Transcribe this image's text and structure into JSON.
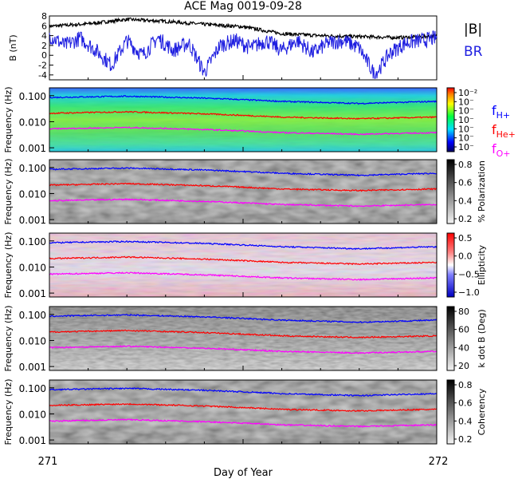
{
  "chart_data": {
    "type": "heatmap",
    "title": "ACE Mag 0019-09-28",
    "xlabel": "Day of Year",
    "x_ticks": [
      "271",
      "272"
    ],
    "xlim": [
      271,
      272
    ],
    "colors": {
      "bfield": "#000000",
      "br": "#1f1fe0",
      "h": "#0000ff",
      "he": "#ff0000",
      "o": "#ff00ff"
    },
    "top_panel": {
      "ylabel": "B (nT)",
      "ylim": [
        -5,
        8
      ],
      "yticks": [
        "8",
        "6",
        "4",
        "2",
        "0",
        "-2",
        "-4"
      ],
      "legend": [
        "|B|",
        "BR"
      ],
      "series": [
        {
          "name": "|B|",
          "x": [
            271.0,
            271.1,
            271.2,
            271.3,
            271.4,
            271.5,
            271.6,
            271.7,
            271.8,
            271.9,
            272.0
          ],
          "y": [
            5.9,
            6.4,
            7.3,
            6.9,
            6.3,
            5.8,
            4.4,
            4.0,
            3.8,
            3.6,
            3.9
          ]
        },
        {
          "name": "BR",
          "x": [
            271.0,
            271.04,
            271.08,
            271.12,
            271.16,
            271.2,
            271.24,
            271.28,
            271.32,
            271.36,
            271.4,
            271.44,
            271.48,
            271.52,
            271.56,
            271.6,
            271.64,
            271.68,
            271.72,
            271.76,
            271.8,
            271.84,
            271.88,
            271.92,
            271.96,
            272.0
          ],
          "y": [
            4.0,
            2.0,
            3.5,
            1.0,
            -2.0,
            3.0,
            0.0,
            3.5,
            1.0,
            2.5,
            -3.5,
            2.0,
            3.0,
            1.5,
            3.0,
            1.0,
            3.0,
            0.5,
            2.5,
            3.0,
            1.5,
            -4.0,
            0.5,
            2.5,
            3.0,
            3.5
          ]
        }
      ]
    },
    "freq_axis": {
      "ylabel": "Frequency (Hz)",
      "ticks": [
        "0.100",
        "0.010",
        "0.001"
      ]
    },
    "gyro_lines": [
      {
        "name": "fH+",
        "label_main": "f",
        "label_sub": "H+",
        "x": [
          271.0,
          271.2,
          271.4,
          271.6,
          271.8,
          272.0
        ],
        "y": [
          0.085,
          0.095,
          0.08,
          0.06,
          0.05,
          0.06
        ]
      },
      {
        "name": "fHe+",
        "label_main": "f",
        "label_sub": "He+",
        "x": [
          271.0,
          271.2,
          271.4,
          271.6,
          271.8,
          272.0
        ],
        "y": [
          0.021,
          0.024,
          0.02,
          0.015,
          0.013,
          0.015
        ]
      },
      {
        "name": "fO+",
        "label_main": "f",
        "label_sub": "O+",
        "x": [
          271.0,
          271.2,
          271.4,
          271.6,
          271.8,
          272.0
        ],
        "y": [
          0.0053,
          0.006,
          0.005,
          0.0038,
          0.0033,
          0.0038
        ]
      }
    ],
    "panels": [
      {
        "id": "power",
        "colormap": "rainbow",
        "colorbar_title": "",
        "colorbar_ticks": [
          "10⁻²",
          "10⁻",
          "10⁻",
          "10⁻",
          "10⁻",
          "10⁻",
          "10⁻"
        ]
      },
      {
        "id": "polarization",
        "colormap": "gray",
        "colorbar_title": "% Polarization",
        "colorbar_ticks": [
          "0.8",
          "0.6",
          "0.4",
          "0.2"
        ]
      },
      {
        "id": "ellipticity",
        "colormap": "bwr",
        "colorbar_title": "Ellipticity",
        "colorbar_ticks": [
          "0.5",
          "0.0",
          "−0.5",
          "−1.0"
        ]
      },
      {
        "id": "kdotb",
        "colormap": "gray",
        "colorbar_title": "k dot B (Deg)",
        "colorbar_ticks": [
          "80",
          "60",
          "40",
          "20"
        ]
      },
      {
        "id": "coherency",
        "colormap": "gray",
        "colorbar_title": "Coherency",
        "colorbar_ticks": [
          "0.8",
          "0.6",
          "0.4",
          "0.2"
        ]
      }
    ]
  }
}
